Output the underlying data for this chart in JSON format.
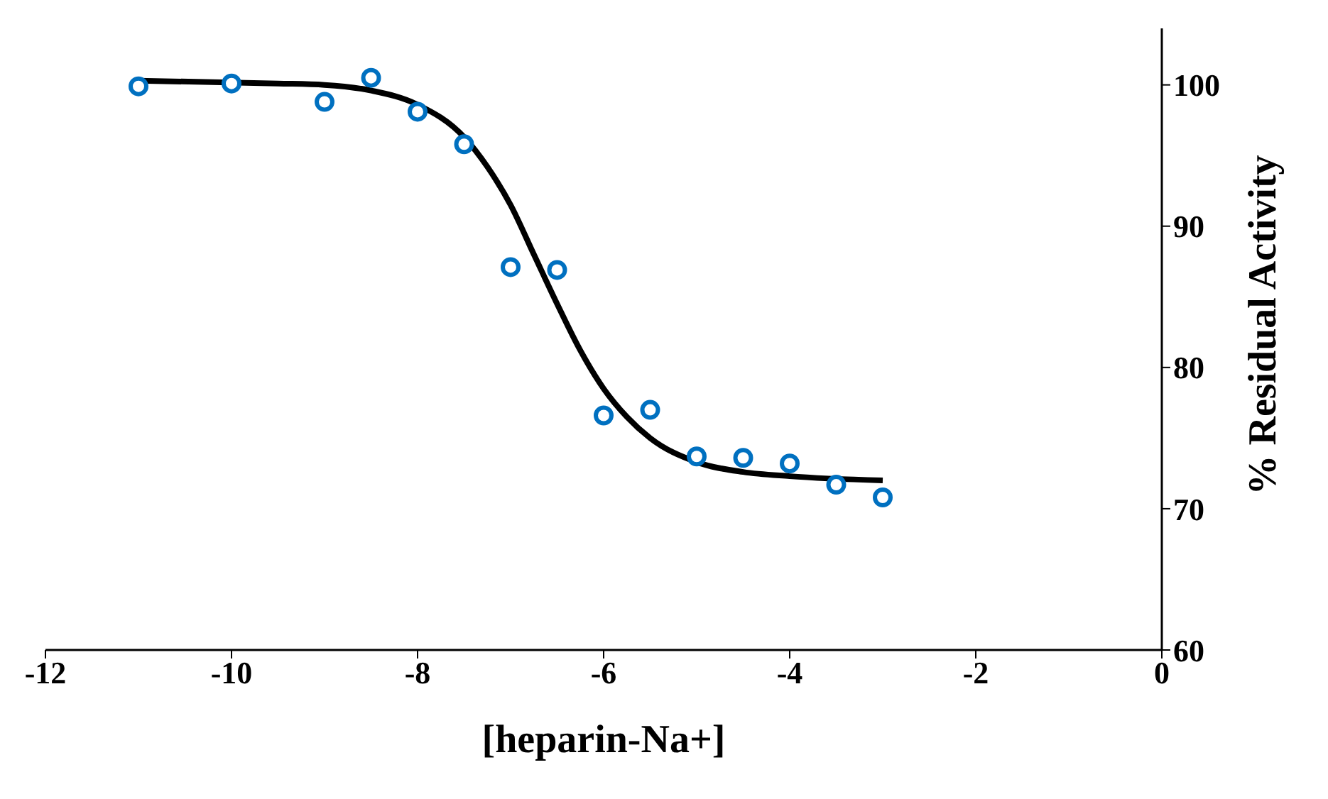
{
  "chart_data": {
    "type": "scatter",
    "xlabel": "[heparin-Na+]",
    "ylabel": "% Residual Activity",
    "xlim": [
      -12,
      0
    ],
    "xticks": [
      -12,
      -10,
      -8,
      -6,
      -4,
      -2,
      0
    ],
    "ylim": [
      60,
      104
    ],
    "yticks": [
      60,
      70,
      80,
      90,
      100
    ],
    "series": [
      {
        "color": "#0070c0",
        "marker": "circle",
        "x": [
          -11,
          -10,
          -9,
          -8.5,
          -8,
          -7.5,
          -7,
          -6.5,
          -6,
          -5.5,
          -5,
          -4.5,
          -4,
          -3.5,
          -3
        ],
        "values": [
          99.9,
          100.1,
          98.8,
          100.5,
          98.1,
          95.8,
          87.1,
          86.9,
          76.6,
          77.0,
          73.7,
          73.6,
          73.2,
          71.7,
          70.8
        ]
      },
      {
        "type": "line",
        "color": "#000000",
        "x": [
          -11,
          -9.5,
          -9,
          -8.5,
          -8,
          -7.5,
          -7.25,
          -7,
          -6.75,
          -6.5,
          -6.25,
          -6,
          -5.75,
          -5.5,
          -5,
          -4.5,
          -4,
          -3
        ],
        "values": [
          100.3,
          100.1,
          100,
          99.6,
          98.6,
          96.3,
          94.2,
          91.5,
          88,
          84.5,
          81.2,
          78.5,
          76.5,
          75,
          73.3,
          72.6,
          72.3,
          72.0
        ]
      }
    ]
  }
}
